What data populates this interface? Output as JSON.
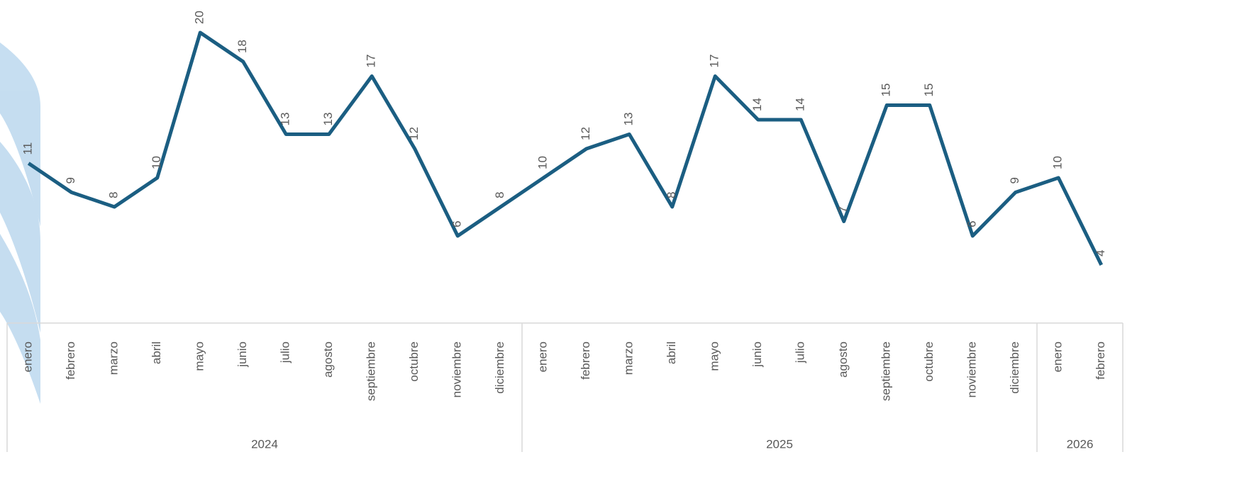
{
  "chart_data": {
    "type": "line",
    "color": "#1b5e82",
    "ylim": [
      0,
      20
    ],
    "groups": [
      {
        "label": "2024",
        "categories": [
          "enero",
          "febrero",
          "marzo",
          "abril",
          "mayo",
          "junio",
          "julio",
          "agosto",
          "septiembre",
          "octubre",
          "noviembre",
          "diciembre"
        ],
        "values": [
          11,
          9,
          8,
          10,
          20,
          18,
          13,
          13,
          17,
          12,
          6,
          8
        ]
      },
      {
        "label": "2025",
        "categories": [
          "enero",
          "febrero",
          "marzo",
          "abril",
          "mayo",
          "junio",
          "julio",
          "agosto",
          "septiembre",
          "octubre",
          "noviembre",
          "diciembre"
        ],
        "values": [
          10,
          12,
          13,
          8,
          17,
          14,
          14,
          7,
          15,
          15,
          6,
          9
        ]
      },
      {
        "label": "2026",
        "categories": [
          "enero",
          "febrero"
        ],
        "values": [
          10,
          4
        ]
      }
    ]
  }
}
